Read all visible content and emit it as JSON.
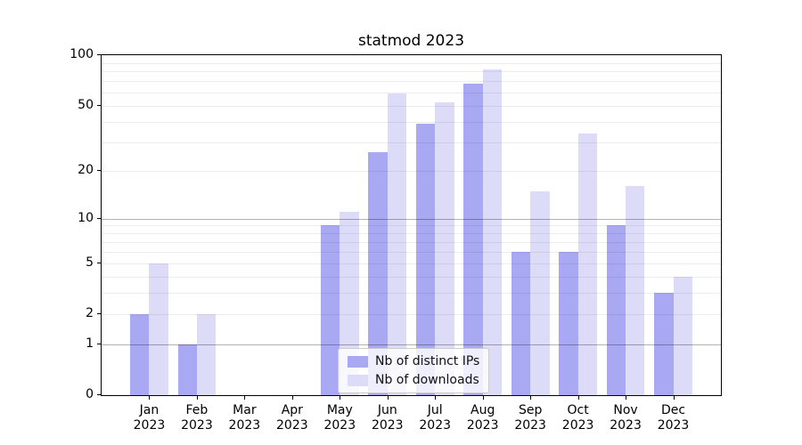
{
  "chart_data": {
    "type": "bar",
    "title": "statmod 2023",
    "categories": [
      "Jan 2023",
      "Feb 2023",
      "Mar 2023",
      "Apr 2023",
      "May 2023",
      "Jun 2023",
      "Jul 2023",
      "Aug 2023",
      "Sep 2023",
      "Oct 2023",
      "Nov 2023",
      "Dec 2023"
    ],
    "x_tick_month_labels": [
      "Jan",
      "Feb",
      "Mar",
      "Apr",
      "May",
      "Jun",
      "Jul",
      "Aug",
      "Sep",
      "Oct",
      "Nov",
      "Dec"
    ],
    "x_tick_year_label": "2023",
    "series": [
      {
        "name": "Nb of distinct IPs",
        "color": "#a8a8f3",
        "values": [
          2,
          1,
          0,
          0,
          9,
          26,
          39,
          68,
          6,
          6,
          9,
          3
        ]
      },
      {
        "name": "Nb of downloads",
        "color": "#dcdcf8",
        "values": [
          5,
          2,
          0,
          0,
          11,
          59,
          52,
          82,
          15,
          34,
          16,
          4
        ]
      }
    ],
    "yscale": "log1p",
    "ylim": [
      0,
      100
    ],
    "y_tick_values": [
      0,
      1,
      2,
      5,
      10,
      20,
      50,
      100
    ],
    "y_tick_labels": [
      "0",
      "1",
      "2",
      "5",
      "10",
      "20",
      "50",
      "100"
    ],
    "y_major_gridline_values": [
      1,
      10
    ],
    "y_minor_gridline_values": [
      2,
      3,
      4,
      5,
      6,
      7,
      8,
      9,
      20,
      30,
      40,
      50,
      60,
      70,
      80,
      90
    ],
    "grid": "on",
    "legend_position": "lower center (inside plot)",
    "colors": {
      "bar_distinct_ips": "#a8a8f3",
      "bar_downloads": "#dcdcf8",
      "spine": "#000000",
      "legend_border": "#cccccc"
    }
  }
}
